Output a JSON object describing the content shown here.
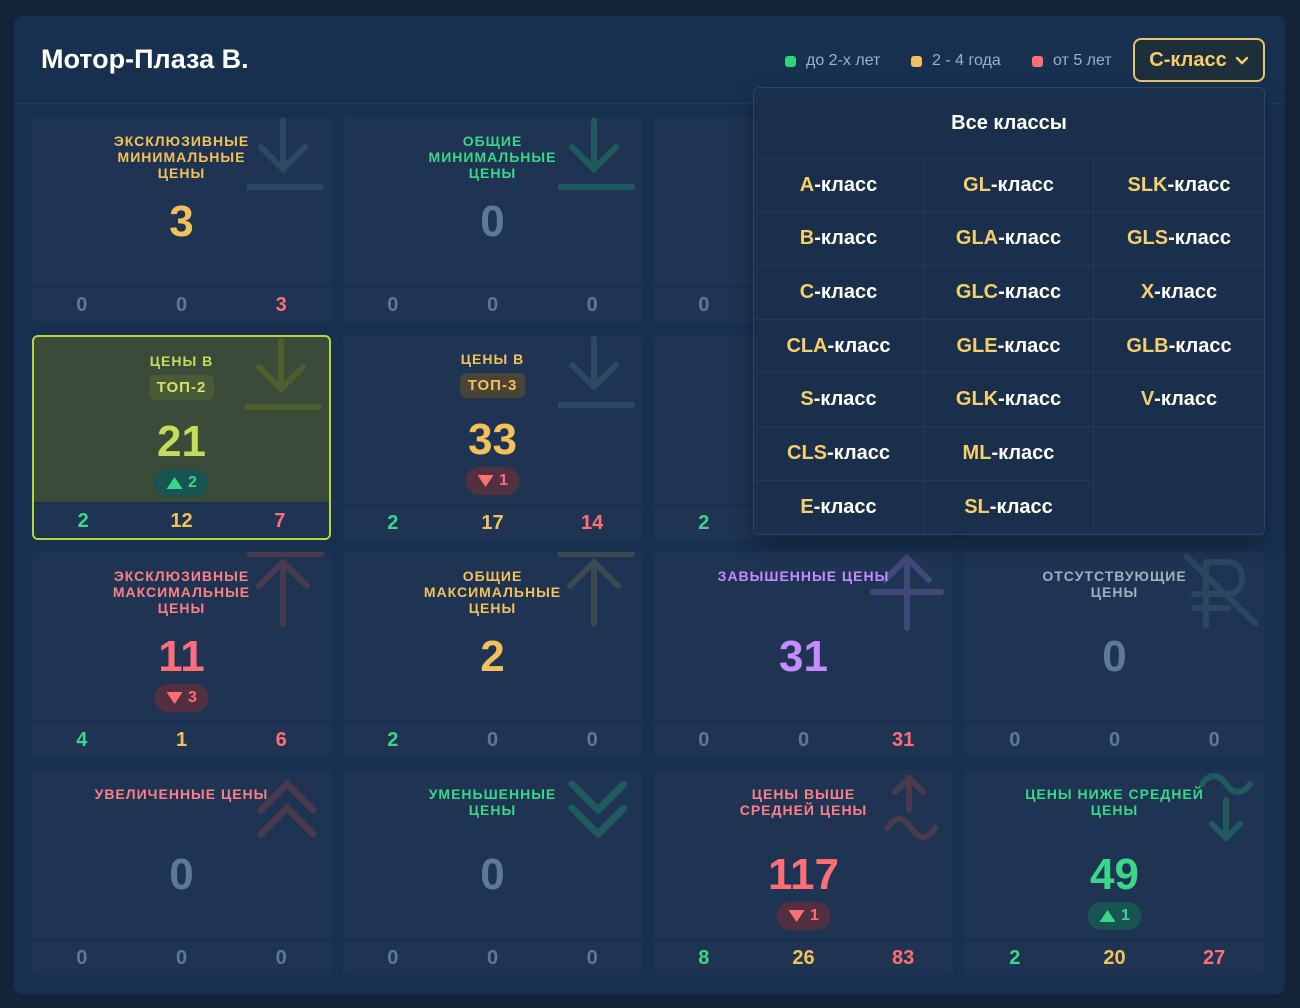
{
  "header": {
    "title": "Мотор-Плаза В.",
    "legend": [
      {
        "label": "до 2-х лет",
        "color": "#2fd47c"
      },
      {
        "label": "2 - 4 года",
        "color": "#f3c15a"
      },
      {
        "label": "от 5 лет",
        "color": "#ff6e76"
      }
    ],
    "class_select": {
      "value": "C-класс",
      "icon": "chevron-down-icon"
    }
  },
  "cards": [
    {
      "title": "ЭКСКЛЮЗИВНЫЕ МИНИМАЛЬНЫЕ ЦЕНЫ",
      "value": "3",
      "footer": [
        "0",
        "0",
        "3"
      ],
      "icon": "arrow-down-to-line-icon"
    },
    {
      "title": "ОБЩИЕ МИНИМАЛЬНЫЕ ЦЕНЫ",
      "value": "0",
      "footer": [
        "0",
        "0",
        "0"
      ],
      "icon": "arrow-down-to-line-icon"
    },
    {
      "title": "ЦЕНЫ В",
      "tag": "ТОП-2",
      "value": "21",
      "badge": "2",
      "badge_dir": "up",
      "footer": [
        "2",
        "12",
        "7"
      ],
      "icon": "arrow-down-to-line-icon"
    },
    {
      "title": "ЦЕНЫ В",
      "tag": "ТОП-3",
      "value": "33",
      "badge": "1",
      "badge_dir": "down",
      "footer": [
        "2",
        "17",
        "14"
      ],
      "icon": "arrow-down-to-line-icon"
    },
    {
      "title": "ЭКСКЛЮЗИВНЫЕ МАКСИМАЛЬНЫЕ ЦЕНЫ",
      "value": "11",
      "badge": "3",
      "badge_dir": "down",
      "footer": [
        "4",
        "1",
        "6"
      ],
      "icon": "arrow-up-icon"
    },
    {
      "title": "ОБЩИЕ МАКСИМАЛЬНЫЕ ЦЕНЫ",
      "value": "2",
      "footer": [
        "2",
        "0",
        "0"
      ],
      "icon": "arrow-up-icon"
    },
    {
      "title": "ЗАВЫШЕННЫЕ ЦЕНЫ",
      "value": "31",
      "footer": [
        "0",
        "0",
        "31"
      ],
      "icon": "arrow-up-crossed-icon"
    },
    {
      "title": "ОТСУТСТВУЮЩИЕ ЦЕНЫ",
      "value": "0",
      "footer": [
        "0",
        "0",
        "0"
      ],
      "icon": "ruble-crossed-icon"
    },
    {
      "title": "УВЕЛИЧЕННЫЕ ЦЕНЫ",
      "value": "0",
      "footer": [
        "0",
        "0",
        "0"
      ],
      "icon": "double-chevron-up-icon"
    },
    {
      "title": "УМЕНЬШЕННЫЕ ЦЕНЫ",
      "value": "0",
      "footer": [
        "0",
        "0",
        "0"
      ],
      "icon": "double-chevron-down-icon"
    },
    {
      "title": "ЦЕНЫ ВЫШЕ СРЕДНЕЙ ЦЕНЫ",
      "value": "117",
      "badge": "1",
      "badge_dir": "down",
      "footer": [
        "8",
        "26",
        "83"
      ],
      "icon": "arrow-up-wave-icon"
    },
    {
      "title": "ЦЕНЫ НИЖЕ СРЕДНЕЙ ЦЕНЫ",
      "value": "49",
      "badge": "1",
      "badge_dir": "up",
      "footer": [
        "2",
        "20",
        "27"
      ],
      "icon": "wave-arrow-down-icon"
    },
    {
      "title": "",
      "value": "",
      "footer": [
        "0",
        "",
        ""
      ]
    },
    {
      "title": "",
      "value": "",
      "footer": [
        "2",
        "",
        ""
      ]
    }
  ],
  "dropdown": {
    "all_label": "Все классы",
    "items": [
      {
        "cls": "A",
        "suffix": "-класс"
      },
      {
        "cls": "GL",
        "suffix": "-класс"
      },
      {
        "cls": "SLK",
        "suffix": "-класс"
      },
      {
        "cls": "B",
        "suffix": "-класс"
      },
      {
        "cls": "GLA",
        "suffix": "-класс"
      },
      {
        "cls": "GLS",
        "suffix": "-класс"
      },
      {
        "cls": "C",
        "suffix": "-класс"
      },
      {
        "cls": "GLC",
        "suffix": "-класс"
      },
      {
        "cls": "X",
        "suffix": "-класс"
      },
      {
        "cls": "CLA",
        "suffix": "-класс"
      },
      {
        "cls": "GLE",
        "suffix": "-класс"
      },
      {
        "cls": "GLB",
        "suffix": "-класс"
      },
      {
        "cls": "S",
        "suffix": "-класс"
      },
      {
        "cls": "GLK",
        "suffix": "-класс"
      },
      {
        "cls": "V",
        "suffix": "-класс"
      },
      {
        "cls": "CLS",
        "suffix": "-класс"
      },
      {
        "cls": "ML",
        "suffix": "-класс"
      },
      {
        "cls": "",
        "suffix": ""
      },
      {
        "cls": "E",
        "suffix": "-класс"
      },
      {
        "cls": "SL",
        "suffix": "-класс"
      },
      {
        "cls": "",
        "suffix": ""
      }
    ]
  },
  "colors": {
    "green": "#2fd47c",
    "yellow": "#f3c15a",
    "red": "#ff6e76",
    "purple": "#c48cff",
    "muted": "#5f7899",
    "lime": "#b7d63a"
  }
}
